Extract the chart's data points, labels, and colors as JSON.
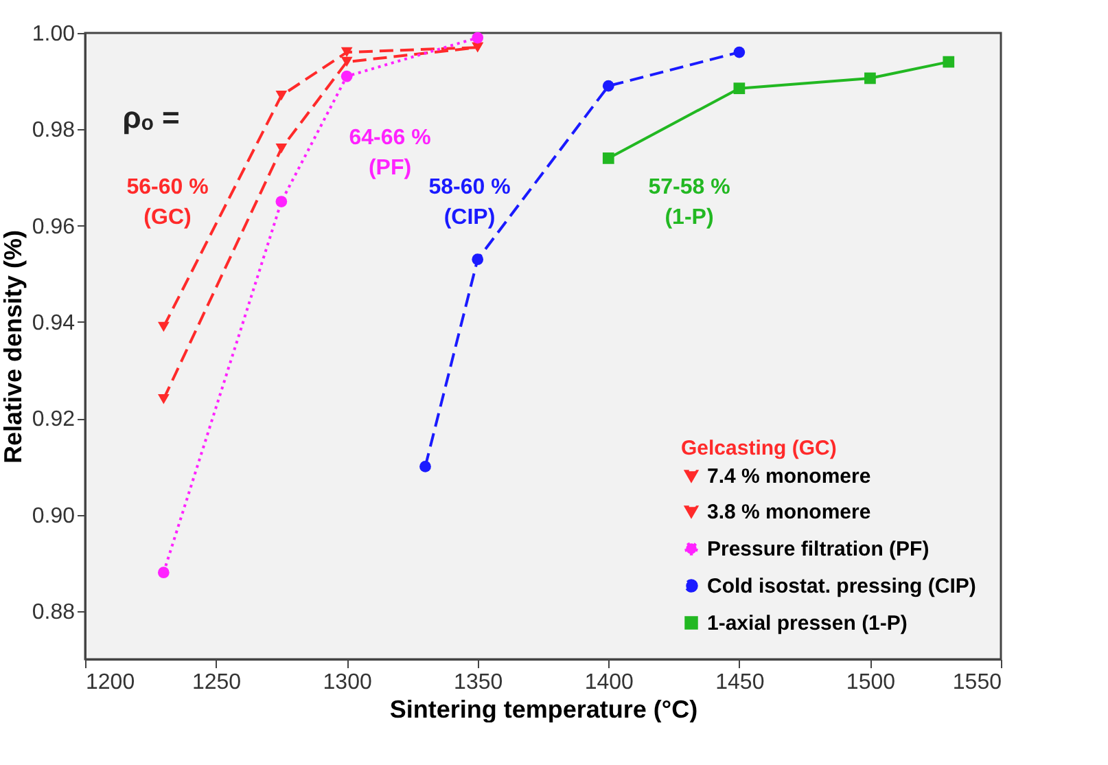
{
  "chart_data": {
    "type": "line",
    "xlabel": "Sintering temperature (°C)",
    "ylabel": "Relative density (%)",
    "xlim": [
      1200,
      1550
    ],
    "xticks": [
      1200,
      1250,
      1300,
      1350,
      1400,
      1450,
      1500,
      1550
    ],
    "ylim": [
      0.87,
      1.0
    ],
    "yticks": [
      {
        "value": 0.88,
        "label": "0.88"
      },
      {
        "value": 0.9,
        "label": "0.90"
      },
      {
        "value": 0.92,
        "label": "0.92"
      },
      {
        "value": 0.94,
        "label": "0.94"
      },
      {
        "value": 0.96,
        "label": "0.96"
      },
      {
        "value": 0.98,
        "label": "0.98"
      },
      {
        "value": 1.0,
        "label": "1.00"
      }
    ],
    "grid": false,
    "legend": "bottom right",
    "legend_title": "Gelcasting (GC)",
    "series": [
      {
        "name": "7.4 % monomere",
        "color": "#ff2a2a",
        "marker": "triangle",
        "line_style": "dashed",
        "x": [
          1230,
          1275,
          1300,
          1350
        ],
        "values": [
          0.939,
          0.987,
          0.996,
          0.997
        ]
      },
      {
        "name": "3.8 % monomere",
        "color": "#ff2a2a",
        "marker": "triangle",
        "line_style": "dashed",
        "x": [
          1230,
          1275,
          1300,
          1350
        ],
        "values": [
          0.924,
          0.976,
          0.994,
          0.997
        ]
      },
      {
        "name": "Pressure filtration (PF)",
        "color": "#ff22ff",
        "marker": "circle",
        "line_style": "dotted",
        "x": [
          1230,
          1275,
          1300,
          1350
        ],
        "values": [
          0.888,
          0.965,
          0.991,
          0.999
        ]
      },
      {
        "name": "Cold isostat. pressing (CIP)",
        "color": "#1a1aff",
        "marker": "circle",
        "line_style": "dashed",
        "x": [
          1330,
          1350,
          1400,
          1450
        ],
        "values": [
          0.91,
          0.953,
          0.989,
          0.996
        ]
      },
      {
        "name": "1-axial pressen (1-P)",
        "color": "#22b822",
        "marker": "square",
        "line_style": "solid",
        "x": [
          1400,
          1450,
          1500,
          1530
        ],
        "values": [
          0.974,
          0.9885,
          0.9906,
          0.994
        ]
      }
    ],
    "annotations": [
      "ρₒ =",
      "56-60 %\n(GC)",
      "64-66 %\n(PF)",
      "58-60 %\n(CIP)",
      "57-58 %\n(1-P)"
    ]
  }
}
